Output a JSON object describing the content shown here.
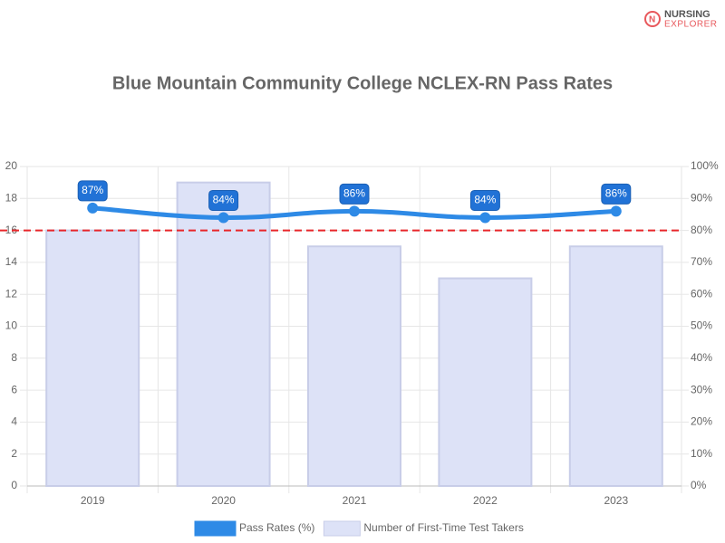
{
  "logo": {
    "line1": "NURSING",
    "line2": "EXPLORER"
  },
  "chart_data": {
    "type": "bar",
    "title": "Blue Mountain Community College NCLEX-RN Pass Rates",
    "categories": [
      "2019",
      "2020",
      "2021",
      "2022",
      "2023"
    ],
    "series": [
      {
        "name": "Pass Rates (%)",
        "type": "line",
        "axis": "y2",
        "color": "#2e8ae6",
        "values": [
          87,
          84,
          86,
          84,
          86
        ],
        "value_labels": [
          "87%",
          "84%",
          "86%",
          "84%",
          "86%"
        ]
      },
      {
        "name": "Number of First-Time Test Takers",
        "type": "bar",
        "color": "#dde2f7",
        "values": [
          16,
          19,
          15,
          13,
          15
        ]
      }
    ],
    "reference_line": {
      "value": 80,
      "axis": "y2",
      "color": "#e8262a"
    },
    "ylim": [
      0,
      20
    ],
    "yticks": [
      0,
      2,
      4,
      6,
      8,
      10,
      12,
      14,
      16,
      18,
      20
    ],
    "y2lim": [
      0,
      100
    ],
    "y2ticks": [
      {
        "value": 0,
        "label": "0%"
      },
      {
        "value": 10,
        "label": "10%"
      },
      {
        "value": 20,
        "label": "20%"
      },
      {
        "value": 30,
        "label": "30%"
      },
      {
        "value": 40,
        "label": "40%"
      },
      {
        "value": 50,
        "label": "50%"
      },
      {
        "value": 60,
        "label": "60%"
      },
      {
        "value": 70,
        "label": "70%"
      },
      {
        "value": 80,
        "label": "80%"
      },
      {
        "value": 90,
        "label": "90%"
      },
      {
        "value": 100,
        "label": "100%"
      }
    ],
    "grid": true
  }
}
